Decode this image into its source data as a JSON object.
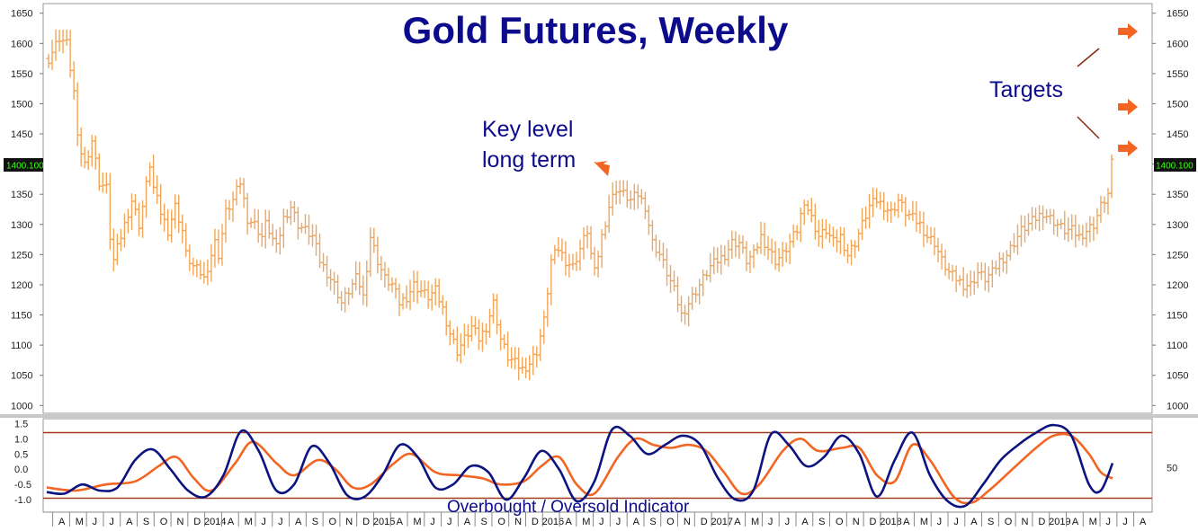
{
  "chart_data": [
    {
      "type": "bar",
      "title": "Gold Futures, Weekly",
      "ylim": [
        990,
        1660
      ],
      "yticks": [
        "1650",
        "1600",
        "1550",
        "1500",
        "1450",
        "1400",
        "1350",
        "1300",
        "1250",
        "1200",
        "1150",
        "1100",
        "1050",
        "1000"
      ],
      "current_price_label": "1400.100",
      "current_price": 1400.1,
      "series_color": "#f0a75c",
      "anchors": [
        [
          0,
          1575
        ],
        [
          3,
          1610
        ],
        [
          5,
          1600
        ],
        [
          7,
          1520
        ],
        [
          8,
          1440
        ],
        [
          10,
          1400
        ],
        [
          12,
          1440
        ],
        [
          14,
          1370
        ],
        [
          16,
          1360
        ],
        [
          17,
          1280
        ],
        [
          18,
          1240
        ],
        [
          19,
          1260
        ],
        [
          21,
          1300
        ],
        [
          23,
          1340
        ],
        [
          25,
          1300
        ],
        [
          26,
          1330
        ],
        [
          28,
          1400
        ],
        [
          29,
          1360
        ],
        [
          31,
          1320
        ],
        [
          33,
          1290
        ],
        [
          35,
          1330
        ],
        [
          37,
          1290
        ],
        [
          38,
          1250
        ],
        [
          40,
          1230
        ],
        [
          42,
          1220
        ],
        [
          43,
          1210
        ],
        [
          45,
          1250
        ],
        [
          46,
          1270
        ],
        [
          47,
          1250
        ],
        [
          49,
          1320
        ],
        [
          51,
          1340
        ],
        [
          53,
          1370
        ],
        [
          55,
          1310
        ],
        [
          57,
          1300
        ],
        [
          59,
          1280
        ],
        [
          60,
          1300
        ],
        [
          61,
          1290
        ],
        [
          63,
          1260
        ],
        [
          65,
          1310
        ],
        [
          67,
          1330
        ],
        [
          69,
          1300
        ],
        [
          71,
          1290
        ],
        [
          73,
          1280
        ],
        [
          75,
          1240
        ],
        [
          77,
          1220
        ],
        [
          79,
          1200
        ],
        [
          81,
          1170
        ],
        [
          83,
          1190
        ],
        [
          85,
          1210
        ],
        [
          86,
          1200
        ],
        [
          87,
          1180
        ],
        [
          89,
          1280
        ],
        [
          91,
          1240
        ],
        [
          93,
          1210
        ],
        [
          95,
          1200
        ],
        [
          97,
          1170
        ],
        [
          99,
          1180
        ],
        [
          101,
          1200
        ],
        [
          103,
          1190
        ],
        [
          105,
          1180
        ],
        [
          107,
          1190
        ],
        [
          109,
          1160
        ],
        [
          111,
          1120
        ],
        [
          113,
          1090
        ],
        [
          115,
          1110
        ],
        [
          117,
          1130
        ],
        [
          119,
          1110
        ],
        [
          121,
          1130
        ],
        [
          123,
          1170
        ],
        [
          125,
          1110
        ],
        [
          127,
          1080
        ],
        [
          129,
          1070
        ],
        [
          131,
          1060
        ],
        [
          133,
          1070
        ],
        [
          135,
          1090
        ],
        [
          137,
          1140
        ],
        [
          139,
          1240
        ],
        [
          141,
          1260
        ],
        [
          143,
          1240
        ],
        [
          145,
          1230
        ],
        [
          147,
          1260
        ],
        [
          149,
          1290
        ],
        [
          150,
          1250
        ],
        [
          151,
          1220
        ],
        [
          153,
          1280
        ],
        [
          155,
          1330
        ],
        [
          157,
          1360
        ],
        [
          159,
          1350
        ],
        [
          161,
          1340
        ],
        [
          163,
          1350
        ],
        [
          165,
          1330
        ],
        [
          166,
          1300
        ],
        [
          167,
          1270
        ],
        [
          169,
          1250
        ],
        [
          171,
          1220
        ],
        [
          173,
          1190
        ],
        [
          175,
          1150
        ],
        [
          177,
          1170
        ],
        [
          179,
          1190
        ],
        [
          181,
          1210
        ],
        [
          183,
          1230
        ],
        [
          185,
          1240
        ],
        [
          187,
          1250
        ],
        [
          189,
          1270
        ],
        [
          191,
          1270
        ],
        [
          193,
          1240
        ],
        [
          195,
          1250
        ],
        [
          197,
          1280
        ],
        [
          199,
          1260
        ],
        [
          201,
          1240
        ],
        [
          203,
          1250
        ],
        [
          205,
          1270
        ],
        [
          207,
          1290
        ],
        [
          209,
          1340
        ],
        [
          211,
          1310
        ],
        [
          213,
          1280
        ],
        [
          215,
          1290
        ],
        [
          217,
          1270
        ],
        [
          219,
          1280
        ],
        [
          221,
          1250
        ],
        [
          223,
          1270
        ],
        [
          225,
          1300
        ],
        [
          227,
          1330
        ],
        [
          229,
          1340
        ],
        [
          231,
          1330
        ],
        [
          233,
          1320
        ],
        [
          235,
          1340
        ],
        [
          237,
          1320
        ],
        [
          239,
          1310
        ],
        [
          241,
          1300
        ],
        [
          243,
          1280
        ],
        [
          245,
          1270
        ],
        [
          247,
          1240
        ],
        [
          249,
          1220
        ],
        [
          251,
          1210
        ],
        [
          253,
          1200
        ],
        [
          255,
          1200
        ],
        [
          257,
          1220
        ],
        [
          259,
          1210
        ],
        [
          261,
          1220
        ],
        [
          263,
          1240
        ],
        [
          265,
          1250
        ],
        [
          267,
          1270
        ],
        [
          269,
          1290
        ],
        [
          271,
          1300
        ],
        [
          273,
          1310
        ],
        [
          275,
          1320
        ],
        [
          277,
          1310
        ],
        [
          279,
          1300
        ],
        [
          281,
          1290
        ],
        [
          283,
          1290
        ],
        [
          285,
          1280
        ],
        [
          287,
          1290
        ],
        [
          289,
          1300
        ],
        [
          291,
          1330
        ],
        [
          293,
          1350
        ],
        [
          294,
          1400
        ]
      ]
    },
    {
      "type": "line",
      "title": "",
      "label": "Overbought / Oversold Indicator",
      "ylim": [
        -1.35,
        1.6
      ],
      "yticks": [
        "1.5",
        "1.0",
        "0.5",
        "0.0",
        "-0.5",
        "-1.0"
      ],
      "right_tick": "50",
      "levels": [
        1.2,
        -0.95
      ],
      "level_color": "#a03a1a",
      "series": [
        {
          "color": "#0b1380",
          "points": [
            [
              0,
              -0.75
            ],
            [
              6,
              -0.8
            ],
            [
              12,
              -0.5
            ],
            [
              18,
              -0.7
            ],
            [
              24,
              -0.6
            ],
            [
              30,
              0.3
            ],
            [
              36,
              0.65
            ],
            [
              42,
              0.0
            ],
            [
              48,
              -0.7
            ],
            [
              54,
              -0.9
            ],
            [
              60,
              -0.2
            ],
            [
              66,
              1.25
            ],
            [
              72,
              0.6
            ],
            [
              78,
              -0.7
            ],
            [
              84,
              -0.5
            ],
            [
              90,
              0.75
            ],
            [
              96,
              0.2
            ],
            [
              102,
              -0.85
            ],
            [
              108,
              -0.9
            ],
            [
              114,
              -0.2
            ],
            [
              120,
              0.8
            ],
            [
              126,
              0.4
            ],
            [
              132,
              -0.6
            ],
            [
              138,
              -0.5
            ],
            [
              144,
              0.1
            ],
            [
              150,
              -0.1
            ],
            [
              156,
              -1.0
            ],
            [
              162,
              -0.3
            ],
            [
              168,
              0.6
            ],
            [
              174,
              0.0
            ],
            [
              180,
              -1.05
            ],
            [
              186,
              -0.4
            ],
            [
              192,
              1.3
            ],
            [
              198,
              1.1
            ],
            [
              204,
              0.5
            ],
            [
              210,
              0.8
            ],
            [
              216,
              1.1
            ],
            [
              222,
              0.8
            ],
            [
              228,
              -0.3
            ],
            [
              234,
              -1.0
            ],
            [
              240,
              -0.7
            ],
            [
              246,
              1.15
            ],
            [
              252,
              0.8
            ],
            [
              258,
              0.1
            ],
            [
              264,
              0.4
            ],
            [
              270,
              1.1
            ],
            [
              276,
              0.5
            ],
            [
              282,
              -0.9
            ],
            [
              288,
              0.3
            ],
            [
              294,
              1.2
            ],
            [
              300,
              -0.2
            ],
            [
              306,
              -1.05
            ],
            [
              312,
              -1.2
            ],
            [
              318,
              -0.5
            ],
            [
              324,
              0.3
            ],
            [
              330,
              0.8
            ],
            [
              336,
              1.2
            ],
            [
              342,
              1.45
            ],
            [
              348,
              1.1
            ],
            [
              354,
              -0.5
            ],
            [
              358,
              -0.7
            ],
            [
              362,
              0.2
            ]
          ]
        },
        {
          "color": "#f26522",
          "points": [
            [
              0,
              -0.6
            ],
            [
              10,
              -0.7
            ],
            [
              20,
              -0.5
            ],
            [
              30,
              -0.4
            ],
            [
              38,
              0.1
            ],
            [
              44,
              0.4
            ],
            [
              50,
              -0.3
            ],
            [
              56,
              -0.7
            ],
            [
              64,
              0.2
            ],
            [
              70,
              0.9
            ],
            [
              78,
              0.2
            ],
            [
              84,
              -0.2
            ],
            [
              92,
              0.3
            ],
            [
              98,
              0.0
            ],
            [
              104,
              -0.6
            ],
            [
              110,
              -0.5
            ],
            [
              118,
              0.2
            ],
            [
              124,
              0.5
            ],
            [
              132,
              -0.1
            ],
            [
              140,
              -0.2
            ],
            [
              148,
              -0.3
            ],
            [
              154,
              -0.5
            ],
            [
              162,
              -0.4
            ],
            [
              168,
              0.1
            ],
            [
              174,
              0.4
            ],
            [
              180,
              -0.5
            ],
            [
              186,
              -0.8
            ],
            [
              194,
              0.4
            ],
            [
              200,
              1.0
            ],
            [
              206,
              0.8
            ],
            [
              212,
              0.7
            ],
            [
              218,
              0.8
            ],
            [
              224,
              0.6
            ],
            [
              230,
              -0.1
            ],
            [
              236,
              -0.8
            ],
            [
              242,
              -0.5
            ],
            [
              250,
              0.6
            ],
            [
              256,
              1.0
            ],
            [
              262,
              0.6
            ],
            [
              270,
              0.7
            ],
            [
              276,
              0.7
            ],
            [
              282,
              -0.2
            ],
            [
              288,
              -0.4
            ],
            [
              294,
              0.8
            ],
            [
              300,
              0.3
            ],
            [
              308,
              -0.9
            ],
            [
              314,
              -1.1
            ],
            [
              320,
              -0.7
            ],
            [
              328,
              0.0
            ],
            [
              336,
              0.7
            ],
            [
              342,
              1.1
            ],
            [
              348,
              1.1
            ],
            [
              354,
              0.5
            ],
            [
              358,
              -0.1
            ],
            [
              362,
              -0.3
            ]
          ]
        }
      ]
    }
  ],
  "x_axis": {
    "months": [
      "A",
      "M",
      "J",
      "J",
      "A",
      "S",
      "O",
      "N",
      "D",
      "2014",
      "A",
      "M",
      "J",
      "J",
      "A",
      "S",
      "O",
      "N",
      "D",
      "2015",
      "A",
      "M",
      "J",
      "J",
      "A",
      "S",
      "O",
      "N",
      "D",
      "2016",
      "A",
      "M",
      "J",
      "J",
      "A",
      "S",
      "O",
      "N",
      "D",
      "2017",
      "A",
      "M",
      "J",
      "J",
      "A",
      "S",
      "O",
      "N",
      "D",
      "2018",
      "A",
      "M",
      "J",
      "J",
      "A",
      "S",
      "O",
      "N",
      "D",
      "2019",
      "A",
      "M",
      "J",
      "J",
      "A"
    ]
  },
  "annotations": {
    "key_level_line1": "Key level",
    "key_level_line2": "long term",
    "targets": "Targets",
    "arrow_color": "#f26522"
  }
}
